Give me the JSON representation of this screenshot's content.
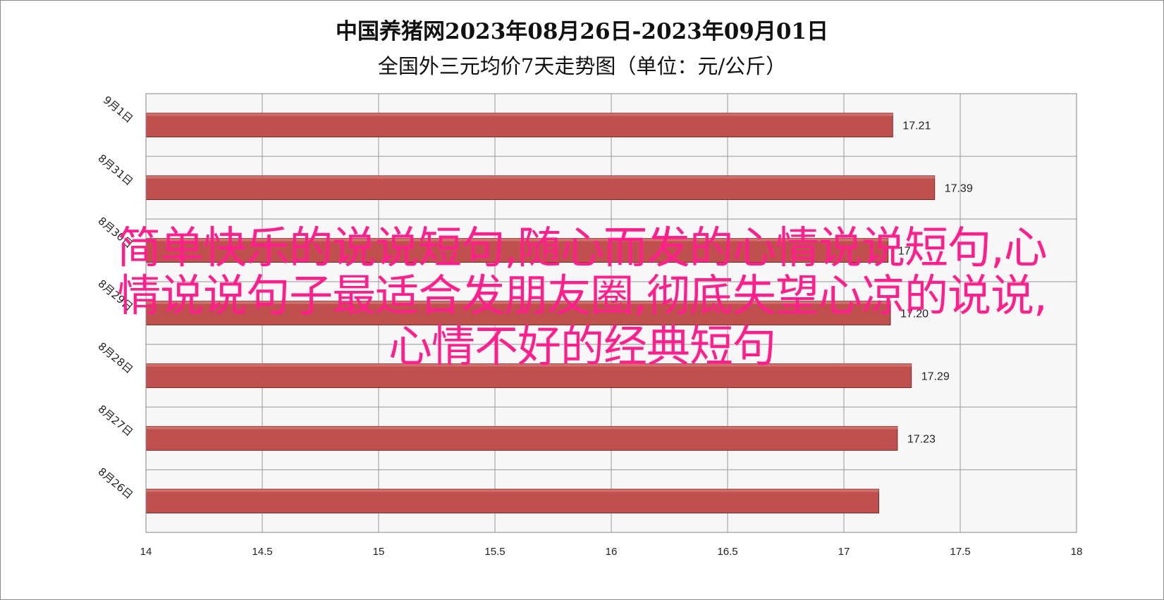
{
  "chart_data": {
    "type": "bar",
    "orientation": "horizontal",
    "title": "中国养猪网2023年08月26日-2023年09月01日",
    "subtitle": "全国外三元均价7天走势图（单位：元/公斤）",
    "categories": [
      "9月1日",
      "8月31日",
      "8月30日",
      "8月29日",
      "8月28日",
      "8月27日",
      "8月26日"
    ],
    "values": [
      17.21,
      17.39,
      17.19,
      17.2,
      17.29,
      17.23,
      17.15
    ],
    "value_labels": [
      "17.21",
      "17.39",
      "17",
      "17.20",
      "17.29",
      "17.23",
      ""
    ],
    "xlim": [
      14,
      18
    ],
    "xticks": [
      "14",
      "14.5",
      "15",
      "15.5",
      "16",
      "16.5",
      "17",
      "17.5",
      "18"
    ],
    "grid": true,
    "legend": "none",
    "bar_color": "#c0504d"
  },
  "overlay_text": {
    "line1": "简单快乐的说说短句,随心而发的心情说说短句,心",
    "line2": "情说说句子最适合发朋友圈,彻底失望心凉的说说,",
    "line3": "心情不好的经典短句",
    "color": "#ff1e8c"
  }
}
